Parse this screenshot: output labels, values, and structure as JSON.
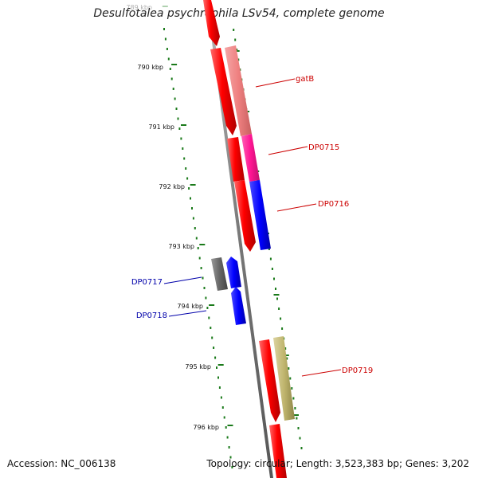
{
  "title": "Desulfotalea psychrophila LSv54, complete genome",
  "footer": {
    "accession": "Accession: NC_006138",
    "summary": "Topology: circular; Length: 3,523,383 bp; Genes: 3,202"
  },
  "colors": {
    "backbone": "#888888",
    "tick": "#1a7a1a",
    "forward_label": "#cc0000",
    "reverse_label": "#0000aa"
  },
  "ticks": [
    {
      "label": "789 kbp",
      "faded": true
    },
    {
      "label": "790 kbp"
    },
    {
      "label": "791 kbp"
    },
    {
      "label": "792 kbp"
    },
    {
      "label": "793 kbp"
    },
    {
      "label": "794 kbp"
    },
    {
      "label": "795 kbp"
    },
    {
      "label": "796 kbp"
    }
  ],
  "gene_labels": [
    {
      "name": "gatB",
      "strand": "forward"
    },
    {
      "name": "DP0715",
      "strand": "forward"
    },
    {
      "name": "DP0716",
      "strand": "forward"
    },
    {
      "name": "DP0717",
      "strand": "reverse"
    },
    {
      "name": "DP0718",
      "strand": "reverse"
    },
    {
      "name": "DP0719",
      "strand": "forward"
    }
  ]
}
